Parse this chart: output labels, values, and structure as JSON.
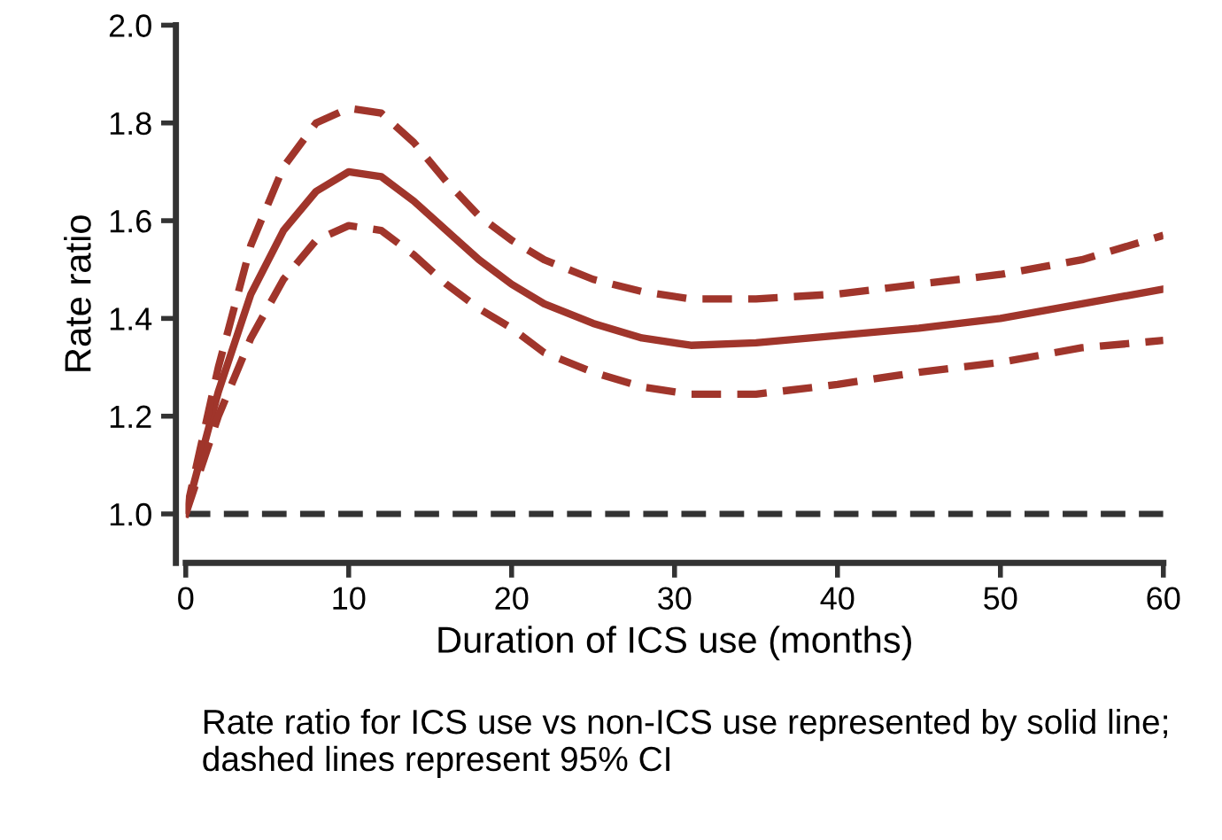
{
  "chart_data": {
    "type": "line",
    "xlabel": "Duration of ICS use (months)",
    "ylabel": "Rate ratio",
    "annotations": [
      "Rate ratio for ICS use vs non-ICS use represented by solid line; dashed lines represent 95% CI"
    ],
    "xlim": [
      0,
      60
    ],
    "xticks": [
      0,
      10,
      20,
      30,
      40,
      50,
      60
    ],
    "ylim": [
      0.9,
      2.0
    ],
    "yticks": [
      {
        "value": 1.0,
        "label": "1.0"
      },
      1.2,
      1.4,
      1.6,
      1.8,
      {
        "value": 2.0,
        "label": "2.0"
      }
    ],
    "marker": "none",
    "ref_lines": [
      {
        "axis": "y",
        "value": 1.0,
        "color": "#333333",
        "line_style": "dashed"
      }
    ],
    "series": [
      {
        "color": "#a0352b",
        "line_style": "solid",
        "x": [
          0,
          2,
          4,
          6,
          8,
          10,
          12,
          14,
          16,
          18,
          20,
          22,
          25,
          28,
          31,
          35,
          40,
          45,
          50,
          55,
          60
        ],
        "values": [
          1.0,
          1.25,
          1.45,
          1.58,
          1.66,
          1.7,
          1.69,
          1.64,
          1.58,
          1.52,
          1.47,
          1.43,
          1.39,
          1.36,
          1.345,
          1.35,
          1.365,
          1.38,
          1.4,
          1.43,
          1.46
        ]
      },
      {
        "color": "#a0352b",
        "line_style": "dashed",
        "x": [
          0,
          2,
          4,
          6,
          8,
          10,
          12,
          14,
          16,
          18,
          20,
          22,
          25,
          28,
          31,
          35,
          40,
          45,
          50,
          55,
          60
        ],
        "values": [
          1.0,
          1.3,
          1.55,
          1.71,
          1.8,
          1.83,
          1.82,
          1.76,
          1.68,
          1.61,
          1.56,
          1.52,
          1.48,
          1.455,
          1.44,
          1.44,
          1.45,
          1.47,
          1.49,
          1.52,
          1.57
        ]
      },
      {
        "color": "#a0352b",
        "line_style": "dashed",
        "x": [
          0,
          2,
          4,
          6,
          8,
          10,
          12,
          14,
          16,
          18,
          20,
          22,
          25,
          28,
          31,
          35,
          40,
          45,
          50,
          55,
          60
        ],
        "values": [
          1.0,
          1.2,
          1.36,
          1.48,
          1.56,
          1.59,
          1.58,
          1.53,
          1.47,
          1.42,
          1.38,
          1.33,
          1.29,
          1.26,
          1.245,
          1.245,
          1.265,
          1.29,
          1.31,
          1.34,
          1.355
        ]
      }
    ]
  }
}
